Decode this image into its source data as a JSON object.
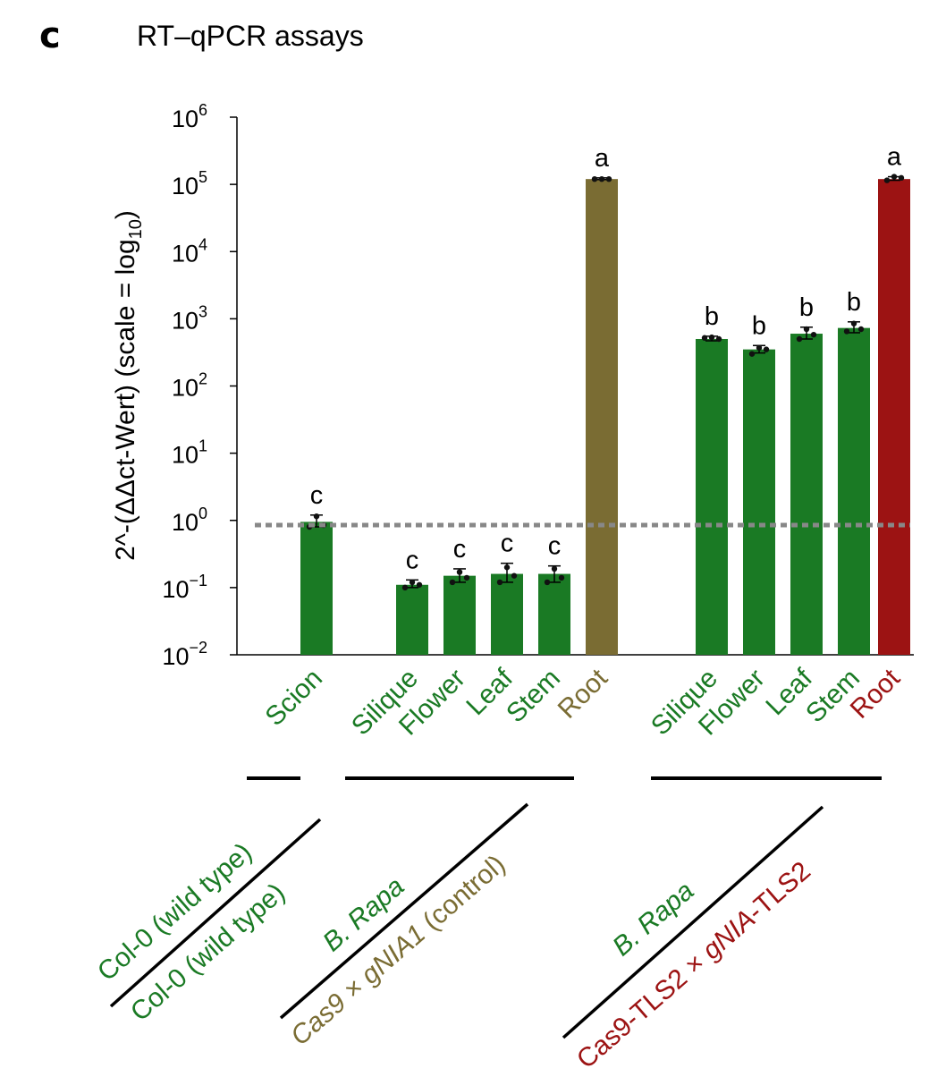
{
  "panel_letter": "c",
  "chart_data": {
    "type": "bar",
    "title": "RT–qPCR assays",
    "ylabel": "2^-(ΔΔct-Wert) (scale = log10)",
    "ylabel_main": "2^-(ΔΔct-Wert) (scale = log",
    "ylabel_sub": "10",
    "ylabel_end": ")",
    "yscale": "log",
    "ylim": [
      0.01,
      1000000
    ],
    "ytick_labels": [
      {
        "base": "10",
        "exp": "−2",
        "value": 0.01
      },
      {
        "base": "10",
        "exp": "−1",
        "value": 0.1
      },
      {
        "base": "10",
        "exp": "0",
        "value": 1
      },
      {
        "base": "10",
        "exp": "1",
        "value": 10
      },
      {
        "base": "10",
        "exp": "2",
        "value": 100
      },
      {
        "base": "10",
        "exp": "3",
        "value": 1000
      },
      {
        "base": "10",
        "exp": "4",
        "value": 10000
      },
      {
        "base": "10",
        "exp": "5",
        "value": 100000
      },
      {
        "base": "10",
        "exp": "6",
        "value": 1000000
      }
    ],
    "reference_line": 0.85,
    "colors": {
      "green": "#1a7a24",
      "olive": "#7a6c33",
      "red": "#9c1313",
      "reference": "#888888"
    },
    "categories": [
      "Scion",
      "Silique",
      "Flower",
      "Leaf",
      "Stem",
      "Root",
      "Silique",
      "Flower",
      "Leaf",
      "Stem",
      "Root"
    ],
    "values": [
      0.95,
      0.11,
      0.15,
      0.16,
      0.16,
      120000,
      500,
      350,
      600,
      730,
      120000
    ],
    "errors_high": [
      1.2,
      0.13,
      0.19,
      0.23,
      0.21,
      125000,
      550,
      400,
      750,
      900,
      130000
    ],
    "errors_low": [
      0.8,
      0.1,
      0.12,
      0.12,
      0.12,
      118000,
      470,
      310,
      500,
      620,
      115000
    ],
    "points": [
      [
        0.8,
        1.15,
        0.85
      ],
      [
        0.1,
        0.12,
        0.11
      ],
      [
        0.12,
        0.17,
        0.14
      ],
      [
        0.12,
        0.2,
        0.15
      ],
      [
        0.12,
        0.19,
        0.14
      ],
      [
        120000,
        120000,
        120000
      ],
      [
        520,
        530,
        500
      ],
      [
        300,
        370,
        350
      ],
      [
        500,
        700,
        580
      ],
      [
        650,
        850,
        700
      ],
      [
        115000,
        130000,
        125000
      ]
    ],
    "significance": [
      "c",
      "c",
      "c",
      "c",
      "c",
      "a",
      "b",
      "b",
      "b",
      "b",
      "a"
    ],
    "bar_colors": [
      "green",
      "green",
      "green",
      "green",
      "green",
      "olive",
      "green",
      "green",
      "green",
      "green",
      "red"
    ],
    "groups": [
      {
        "line1": "Col-0 (wild type)",
        "line1_color": "green",
        "line2": "Col-0 (wild type)",
        "line2_color": "green"
      },
      {
        "line1": "B. Rapa",
        "line1_color": "green",
        "line2_parts": [
          {
            "text": "Cas9 × ",
            "italic": true,
            "color": "olive"
          },
          {
            "text": "gNIA1",
            "italic": true,
            "color": "olive"
          },
          {
            "text": " (control)",
            "italic": false,
            "color": "olive"
          }
        ]
      },
      {
        "line1": "B. Rapa",
        "line1_color": "green",
        "line2_parts": [
          {
            "text": "Cas9-TLS2 × ",
            "italic": false,
            "color": "red"
          },
          {
            "text": "gNIA",
            "italic": true,
            "color": "red"
          },
          {
            "text": "-TLS2",
            "italic": false,
            "color": "red"
          }
        ]
      }
    ]
  }
}
